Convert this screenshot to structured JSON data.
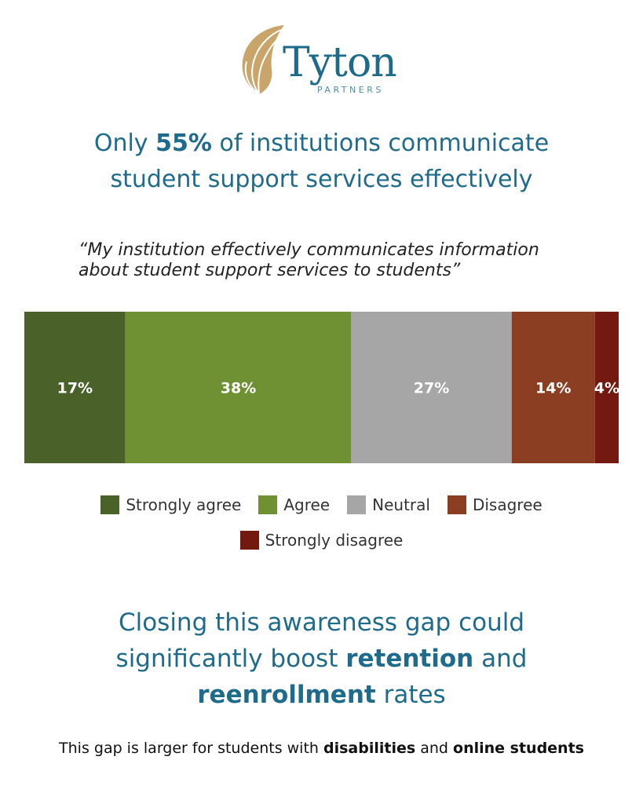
{
  "logo": {
    "word": "Tyton",
    "sub": "PARTNERS"
  },
  "headline": {
    "line1_pre": "Only ",
    "line1_bold": "55%",
    "line1_post": " of institutions communicate",
    "line2": "student support services effectively"
  },
  "quote": "“My institution effectively communicates information about student support services to students”",
  "chart_data": {
    "type": "bar",
    "orientation": "horizontal-stacked",
    "categories": [
      "Strongly agree",
      "Agree",
      "Neutral",
      "Disagree",
      "Strongly disagree"
    ],
    "values": [
      17,
      38,
      27,
      14,
      4
    ],
    "labels": [
      "17%",
      "38%",
      "27%",
      "14%",
      "4%"
    ],
    "colors": [
      "#4a6129",
      "#6f9134",
      "#a6a6a6",
      "#8b3e22",
      "#74190f"
    ],
    "legend": "bottom-center"
  },
  "closing": {
    "line1": "Closing this awareness gap could",
    "line2_pre": "significantly boost ",
    "line2_bold": "retention",
    "line2_post": " and",
    "line3_bold": "reenrollment",
    "line3_post": " rates"
  },
  "footnote": {
    "pre": "This gap is larger for students with ",
    "bold1": "disabilities",
    "mid": " and ",
    "bold2": "online students"
  }
}
